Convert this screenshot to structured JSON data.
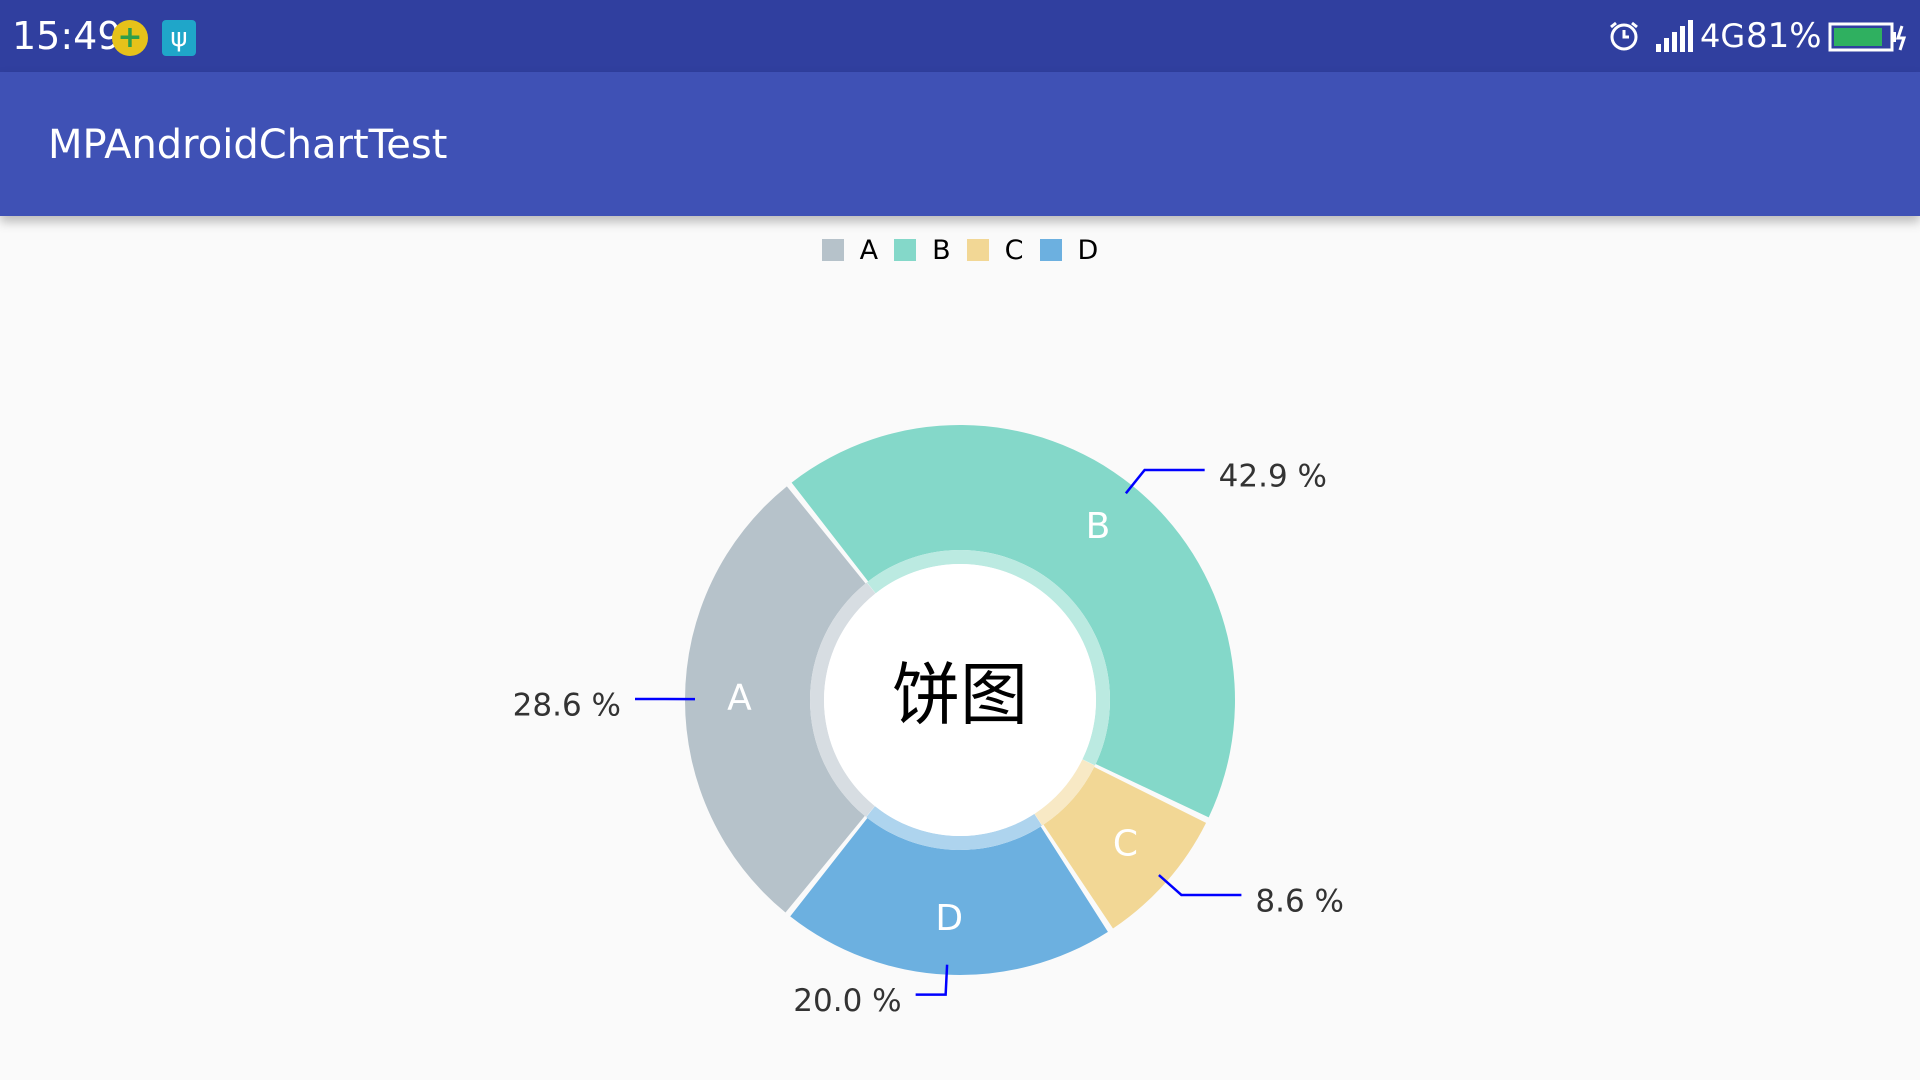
{
  "status_bar": {
    "time": "15:49",
    "icons": [
      "plus-icon",
      "usb-icon",
      "alarm-icon",
      "signal-icon",
      "battery-icon"
    ],
    "network": "4G",
    "battery": "81%"
  },
  "app_bar": {
    "title": "MPAndroidChartTest"
  },
  "colors": {
    "status_bar": "#303f9f",
    "app_bar": "#3f51b5",
    "background": "#fafafa",
    "value_line": "#0000ff"
  },
  "chart_data": {
    "type": "pie",
    "center_text": "饼图",
    "hole": true,
    "categories": [
      "A",
      "B",
      "C",
      "D"
    ],
    "values": [
      28.6,
      42.9,
      8.6,
      20.0
    ],
    "value_labels": [
      "28.6 %",
      "42.9 %",
      "8.6 %",
      "20.0 %"
    ],
    "colors": [
      "#b6c2ca",
      "#84d8c9",
      "#f2d795",
      "#6cb0e0"
    ],
    "legend": {
      "position": "top-center",
      "entries": [
        "A",
        "B",
        "C",
        "D"
      ]
    }
  }
}
